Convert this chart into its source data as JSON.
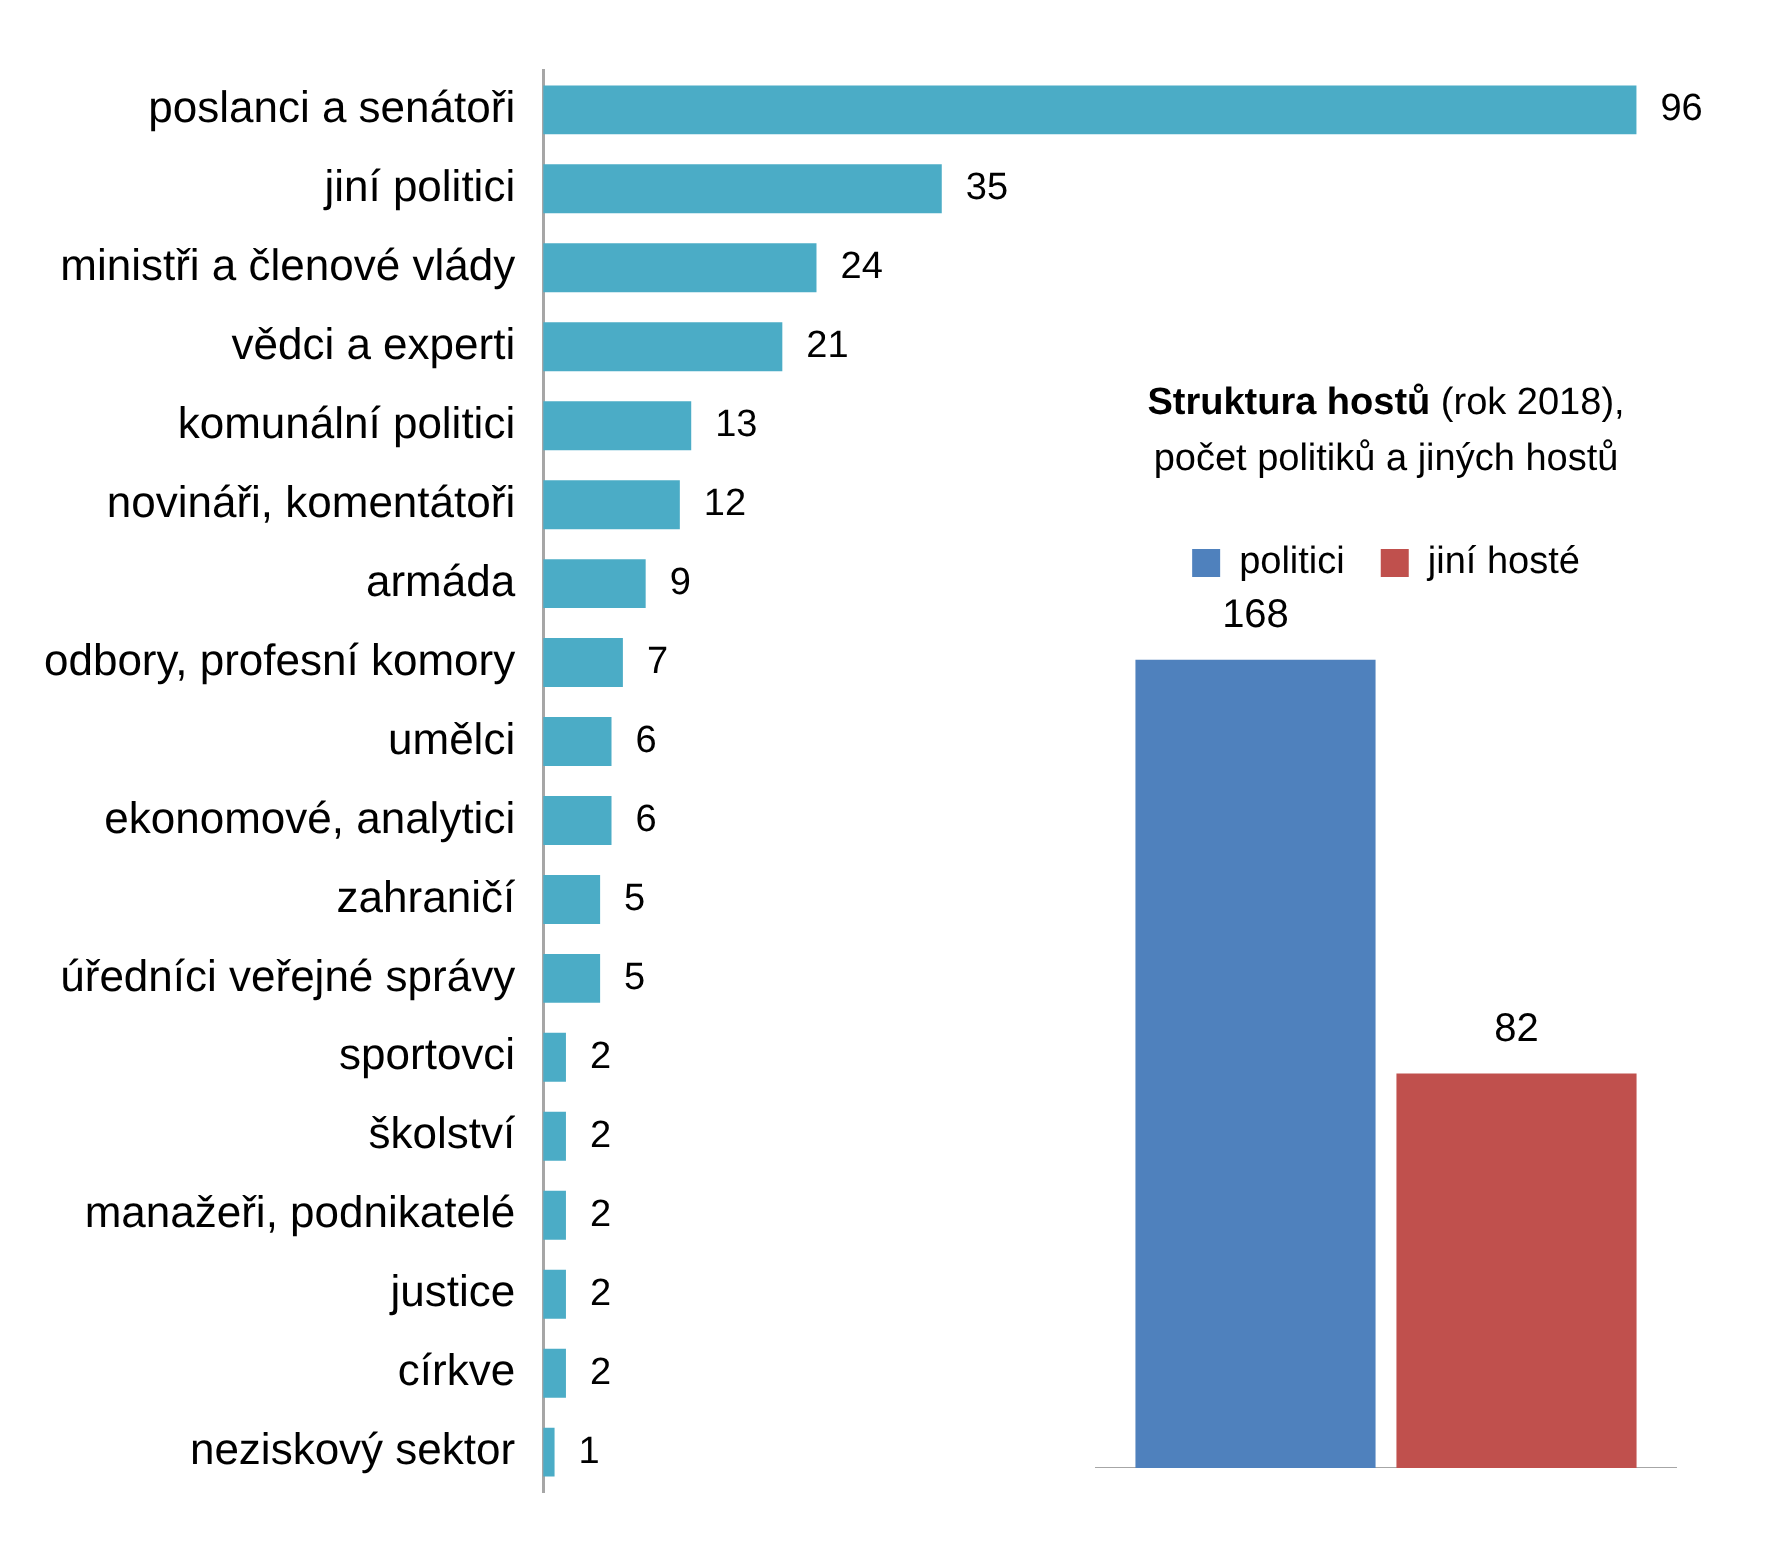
{
  "chart_data": [
    {
      "type": "bar",
      "orientation": "horizontal",
      "categories": [
        "poslanci a senátoři",
        "jiní politici",
        "ministři a členové vlády",
        "vědci a experti",
        "komunální politici",
        "novináři, komentátoři",
        "armáda",
        "odbory, profesní komory",
        "umělci",
        "ekonomové, analytici",
        "zahraničí",
        "úředníci veřejné správy",
        "sportovci",
        "školství",
        "manažeři, podnikatelé",
        "justice",
        "církve",
        "neziskový sektor"
      ],
      "values": [
        96,
        35,
        24,
        21,
        13,
        12,
        9,
        7,
        6,
        6,
        5,
        5,
        2,
        2,
        2,
        2,
        2,
        1
      ],
      "color": "#4bacc6",
      "data_labels": true,
      "grid": false,
      "legend": false,
      "tick_labels": "y"
    },
    {
      "type": "bar",
      "title": "Struktura hostů (rok 2018),",
      "subtitle": "počet politiků a jiných hostů",
      "categories": [
        null
      ],
      "series": [
        {
          "name": "politici",
          "color": "#4f81bd",
          "values": [
            168
          ]
        },
        {
          "name": "jiní hosté",
          "color": "#c0504d",
          "values": [
            82
          ]
        }
      ],
      "data_labels": true,
      "grid": false,
      "legend": "top",
      "tick_labels": false
    }
  ]
}
